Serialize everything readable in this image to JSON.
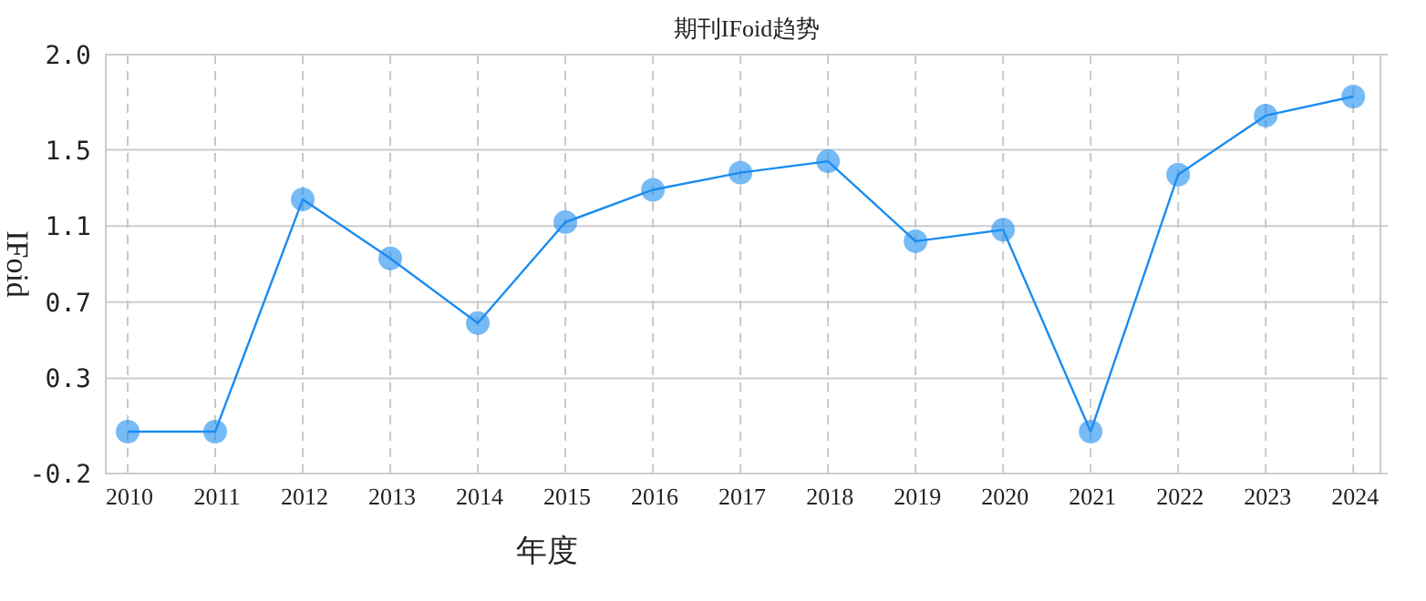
{
  "chart_data": {
    "type": "line",
    "title": "期刊IFoid趋势",
    "xlabel": "年度",
    "ylabel": "IFoid",
    "categories": [
      "2010",
      "2011",
      "2012",
      "2013",
      "2014",
      "2015",
      "2016",
      "2017",
      "2018",
      "2019",
      "2020",
      "2021",
      "2022",
      "2023",
      "2024"
    ],
    "series": [
      {
        "color": "#1a8cf0",
        "values": [
          0.02,
          0.02,
          1.24,
          0.93,
          0.59,
          1.12,
          1.29,
          1.38,
          1.44,
          1.02,
          1.08,
          0.02,
          1.37,
          1.68,
          1.78
        ]
      }
    ],
    "ylim": [
      -0.2,
      2.0
    ],
    "yticks": [
      -0.2,
      0.3,
      0.7,
      1.1,
      1.5,
      {
        "value": 2,
        "label": "2.0"
      }
    ],
    "grid": true,
    "marker": "circle",
    "line_style": "solid"
  }
}
